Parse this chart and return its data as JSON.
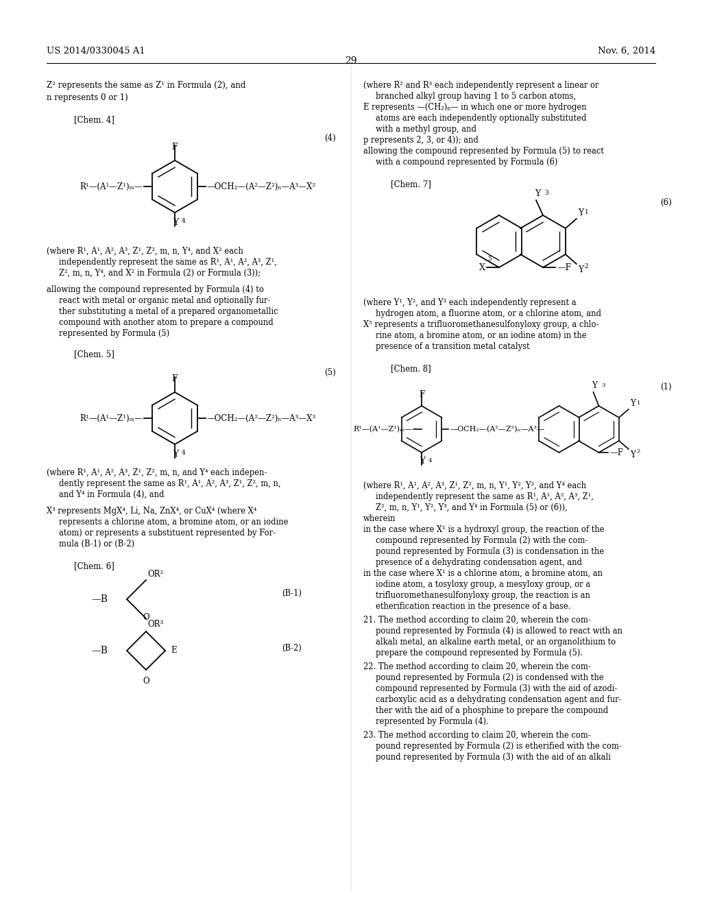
{
  "page_number": "29",
  "patent_number": "US 2014/0330045 A1",
  "patent_date": "Nov. 6, 2014",
  "background_color": "#ffffff"
}
